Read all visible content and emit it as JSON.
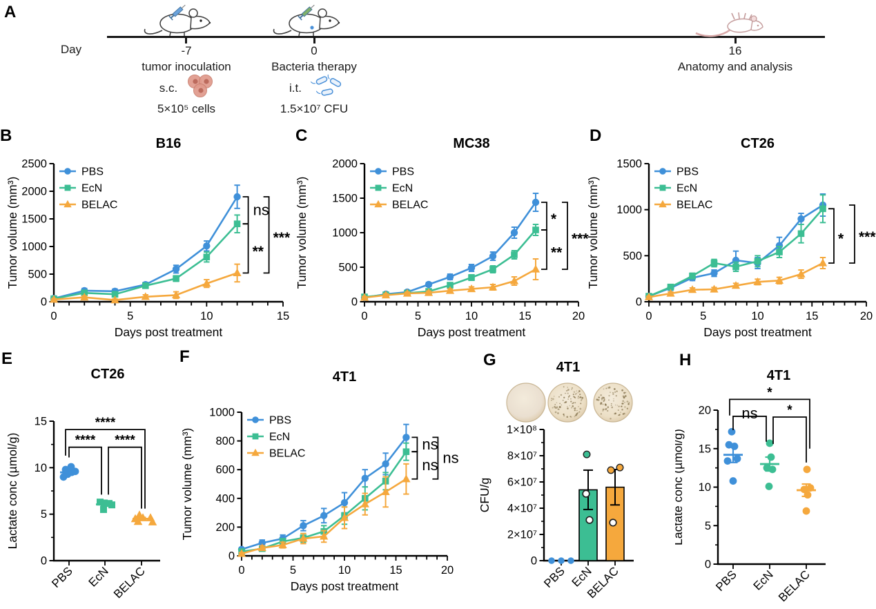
{
  "palette": {
    "pbs_blue": "#3f90d9",
    "ecn_green": "#3cbe93",
    "belac_orange": "#f5a83d",
    "axis_black": "#000000",
    "dish_fill_center": "#f3ebdb",
    "dish_fill_edge": "#dcc9a9",
    "dish_rim": "#c8b593",
    "dish_speck": "#82704a",
    "cells_pink": "#e09a8c",
    "cells_nucleus": "#bc6b5d",
    "bacteria_blue": "#4a90d8",
    "dead_mouse_pink": "#c49c9c",
    "mouse_line": "#3f3f3f",
    "syringe_blue": "#6aa3dd",
    "syringe_green": "#7fb069"
  },
  "group_names": [
    "PBS",
    "EcN",
    "BELAC"
  ],
  "timeline": {
    "panel_label": "A",
    "day_axis_label": "Day",
    "icons": {
      "inoculation_mouse": "mouse-syringe-icon",
      "therapy_mouse": "mouse-syringe-icon",
      "endpoint_mouse": "dead-mouse-icon",
      "sc_icon": "tumor-cells-icon",
      "it_icon": "bacteria-icon"
    },
    "events": [
      {
        "day": "-7",
        "title": "tumor inoculation",
        "route": "s.c.",
        "amount": "5×10⁵ cells"
      },
      {
        "day": "0",
        "title": "Bacteria therapy",
        "route": "i.t.",
        "amount": "1.5×10⁷ CFU"
      },
      {
        "day": "16",
        "title": "Anatomy and analysis",
        "route": "",
        "amount": ""
      }
    ]
  },
  "chart_data": [
    {
      "id": "B",
      "panel_label": "B",
      "type": "line",
      "title": "B16",
      "xlabel": "Days post treatment",
      "ylabel": "Tumor volume (mm³)",
      "x": [
        0,
        2,
        4,
        6,
        8,
        10,
        12
      ],
      "xlim": [
        0,
        15
      ],
      "xticks": [
        0,
        5,
        10,
        15
      ],
      "ylim": [
        0,
        2500
      ],
      "yticks": [
        0,
        500,
        1000,
        1500,
        2000,
        2500
      ],
      "legend_position": "top-left",
      "grid": false,
      "series": [
        {
          "name": "PBS",
          "color_key": "pbs_blue",
          "marker": "circle",
          "values": [
            60,
            200,
            190,
            310,
            590,
            1010,
            1900
          ],
          "sem": [
            20,
            40,
            40,
            40,
            70,
            90,
            210
          ]
        },
        {
          "name": "EcN",
          "color_key": "ecn_green",
          "marker": "square",
          "values": [
            55,
            160,
            135,
            290,
            420,
            810,
            1410
          ],
          "sem": [
            15,
            30,
            30,
            35,
            50,
            90,
            160
          ]
        },
        {
          "name": "BELAC",
          "color_key": "belac_orange",
          "marker": "triangle",
          "values": [
            40,
            80,
            30,
            90,
            120,
            330,
            520
          ],
          "sem": [
            15,
            25,
            20,
            35,
            60,
            70,
            160
          ]
        }
      ],
      "significance": [
        {
          "from": "PBS",
          "to": "EcN",
          "label": "ns",
          "tier": 0
        },
        {
          "from": "EcN",
          "to": "BELAC",
          "label": "**",
          "tier": 0
        },
        {
          "from": "PBS",
          "to": "BELAC",
          "label": "***",
          "tier": 1
        }
      ]
    },
    {
      "id": "C",
      "panel_label": "C",
      "type": "line",
      "title": "MC38",
      "xlabel": "Days post treatment",
      "ylabel": "Tumor volume (mm³)",
      "x": [
        0,
        2,
        4,
        6,
        8,
        10,
        12,
        14,
        16
      ],
      "xlim": [
        0,
        20
      ],
      "xticks": [
        0,
        5,
        10,
        15,
        20
      ],
      "ylim": [
        0,
        2000
      ],
      "yticks": [
        0,
        500,
        1000,
        1500,
        2000
      ],
      "legend_position": "top-left",
      "grid": false,
      "series": [
        {
          "name": "PBS",
          "color_key": "pbs_blue",
          "marker": "circle",
          "values": [
            60,
            110,
            140,
            250,
            360,
            490,
            660,
            1000,
            1440
          ],
          "sem": [
            15,
            20,
            25,
            30,
            40,
            50,
            60,
            80,
            130
          ]
        },
        {
          "name": "EcN",
          "color_key": "ecn_green",
          "marker": "square",
          "values": [
            70,
            100,
            125,
            150,
            240,
            350,
            470,
            680,
            1040
          ],
          "sem": [
            15,
            20,
            20,
            25,
            30,
            40,
            50,
            60,
            80
          ]
        },
        {
          "name": "BELAC",
          "color_key": "belac_orange",
          "marker": "triangle",
          "values": [
            60,
            95,
            120,
            130,
            160,
            185,
            210,
            300,
            470
          ],
          "sem": [
            15,
            20,
            20,
            25,
            25,
            30,
            40,
            60,
            150
          ]
        }
      ],
      "significance": [
        {
          "from": "PBS",
          "to": "EcN",
          "label": "*",
          "tier": 0
        },
        {
          "from": "EcN",
          "to": "BELAC",
          "label": "**",
          "tier": 0
        },
        {
          "from": "PBS",
          "to": "BELAC",
          "label": "***",
          "tier": 1
        }
      ]
    },
    {
      "id": "D",
      "panel_label": "D",
      "type": "line",
      "title": "CT26",
      "xlabel": "Days post treatment",
      "ylabel": "Tumor volume (mm³)",
      "x": [
        0,
        2,
        4,
        6,
        8,
        10,
        12,
        14,
        16
      ],
      "xlim": [
        0,
        20
      ],
      "xticks": [
        0,
        5,
        10,
        15,
        20
      ],
      "ylim": [
        0,
        1500
      ],
      "yticks": [
        0,
        500,
        1000,
        1500
      ],
      "legend_position": "top-left",
      "grid": false,
      "series": [
        {
          "name": "PBS",
          "color_key": "pbs_blue",
          "marker": "circle",
          "values": [
            60,
            150,
            260,
            310,
            450,
            420,
            610,
            900,
            1050
          ],
          "sem": [
            15,
            25,
            30,
            35,
            100,
            60,
            90,
            60,
            120
          ]
        },
        {
          "name": "EcN",
          "color_key": "ecn_green",
          "marker": "square",
          "values": [
            60,
            160,
            280,
            420,
            380,
            440,
            540,
            740,
            1010
          ],
          "sem": [
            15,
            25,
            30,
            40,
            50,
            60,
            60,
            100,
            150
          ]
        },
        {
          "name": "BELAC",
          "color_key": "belac_orange",
          "marker": "triangle",
          "values": [
            50,
            90,
            130,
            135,
            175,
            215,
            230,
            300,
            420
          ],
          "sem": [
            10,
            15,
            20,
            20,
            25,
            30,
            35,
            45,
            60
          ]
        }
      ],
      "significance": [
        {
          "from": "EcN",
          "to": "BELAC",
          "label": "*",
          "tier": 0
        },
        {
          "from": "PBS",
          "to": "BELAC",
          "label": "***",
          "tier": 1
        }
      ]
    },
    {
      "id": "E",
      "panel_label": "E",
      "type": "scatter",
      "title": "CT26",
      "ylabel": "Lactate conc (µmol/g)",
      "ylim": [
        0,
        15
      ],
      "yticks": [
        0,
        5,
        10,
        15
      ],
      "categories": [
        "PBS",
        "EcN",
        "BELAC"
      ],
      "groups": [
        {
          "name": "PBS",
          "color_key": "pbs_blue",
          "marker": "circle",
          "mean": 9.5,
          "sem": 0.18,
          "points": [
            [
              9.0,
              -8
            ],
            [
              9.3,
              -2
            ],
            [
              9.5,
              4
            ],
            [
              9.6,
              9
            ],
            [
              9.8,
              -5
            ],
            [
              10.1,
              3
            ]
          ]
        },
        {
          "name": "EcN",
          "color_key": "ecn_green",
          "marker": "square",
          "mean": 6.05,
          "sem": 0.15,
          "points": [
            [
              6.3,
              -7
            ],
            [
              6.2,
              -1
            ],
            [
              6.15,
              6
            ],
            [
              6.0,
              10
            ],
            [
              5.5,
              -2
            ]
          ]
        },
        {
          "name": "BELAC",
          "color_key": "belac_orange",
          "marker": "triangle",
          "mean": 4.5,
          "sem": 0.15,
          "points": [
            [
              4.9,
              -3
            ],
            [
              4.6,
              2
            ],
            [
              4.5,
              -9
            ],
            [
              4.2,
              -5
            ],
            [
              4.6,
              13
            ],
            [
              4.15,
              16
            ]
          ]
        }
      ],
      "significance": [
        {
          "a": 0,
          "b": 1,
          "label": "****",
          "bar": 12.2,
          "ya": 11.1,
          "yb": 7.1
        },
        {
          "a": 1,
          "b": 2,
          "label": "****",
          "bar": 12.2,
          "ya": 7.1,
          "yb": 5.6
        },
        {
          "a": 0,
          "b": 2,
          "label": "****",
          "bar": 14.1,
          "ya": 11.3,
          "yb": 5.6
        }
      ]
    },
    {
      "id": "F",
      "panel_label": "F",
      "type": "line",
      "title": "4T1",
      "xlabel": "Days post treatment",
      "ylabel": "Tumor volume (mm³)",
      "x": [
        0,
        2,
        4,
        6,
        8,
        10,
        12,
        14,
        16
      ],
      "xlim": [
        0,
        20
      ],
      "xticks": [
        0,
        5,
        10,
        15,
        20
      ],
      "ylim": [
        0,
        1000
      ],
      "yticks": [
        0,
        200,
        400,
        600,
        800,
        1000
      ],
      "legend_position": "top-left",
      "grid": false,
      "series": [
        {
          "name": "PBS",
          "color_key": "pbs_blue",
          "marker": "circle",
          "values": [
            45,
            90,
            120,
            210,
            280,
            370,
            540,
            640,
            825
          ],
          "sem": [
            10,
            20,
            25,
            35,
            50,
            70,
            60,
            75,
            90
          ]
        },
        {
          "name": "EcN",
          "color_key": "ecn_green",
          "marker": "square",
          "values": [
            30,
            50,
            100,
            125,
            170,
            280,
            400,
            520,
            725
          ],
          "sem": [
            10,
            15,
            20,
            30,
            40,
            60,
            80,
            60,
            60
          ]
        },
        {
          "name": "BELAC",
          "color_key": "belac_orange",
          "marker": "triangle",
          "values": [
            15,
            55,
            75,
            120,
            135,
            265,
            360,
            445,
            535
          ],
          "sem": [
            8,
            15,
            20,
            35,
            40,
            75,
            75,
            105,
            105
          ]
        }
      ],
      "significance": [
        {
          "from": "PBS",
          "to": "EcN",
          "label": "ns",
          "tier": 0
        },
        {
          "from": "EcN",
          "to": "BELAC",
          "label": "ns",
          "tier": 0
        },
        {
          "from": "PBS",
          "to": "BELAC",
          "label": "ns",
          "tier": 1
        }
      ]
    },
    {
      "id": "G",
      "panel_label": "G",
      "type": "bar",
      "title": "4T1",
      "ylabel": "CFU/g",
      "ylim": [
        0,
        100000000
      ],
      "yticks": [
        {
          "v": 0,
          "label": "0"
        },
        {
          "v": 20000000,
          "label": "2×10⁷"
        },
        {
          "v": 40000000,
          "label": "4×10⁷"
        },
        {
          "v": 60000000,
          "label": "6×10⁷"
        },
        {
          "v": 80000000,
          "label": "8×10⁷"
        },
        {
          "v": 100000000,
          "label": "1×10⁸"
        }
      ],
      "categories": [
        "PBS",
        "EcN",
        "BELAC"
      ],
      "bars": [
        {
          "name": "PBS",
          "color_key": "pbs_blue",
          "value": 0,
          "sem": 0,
          "points": [
            [
              0,
              -14,
              "solid"
            ],
            [
              0,
              0,
              "solid"
            ],
            [
              0,
              14,
              "solid"
            ]
          ]
        },
        {
          "name": "EcN",
          "color_key": "ecn_green",
          "value": 54000000,
          "sem": 15000000,
          "points": [
            [
              31000000,
              2,
              "open"
            ],
            [
              51000000,
              -3,
              "open"
            ],
            [
              81000000,
              -2,
              "solid"
            ]
          ]
        },
        {
          "name": "BELAC",
          "color_key": "belac_orange",
          "value": 56000000,
          "sem": 13500000,
          "points": [
            [
              29000000,
              -3,
              "open"
            ],
            [
              69000000,
              -6,
              "solid"
            ],
            [
              71000000,
              7,
              "solid"
            ]
          ]
        }
      ],
      "petri_dishes": [
        {
          "group": "PBS",
          "speckles": 0
        },
        {
          "group": "EcN",
          "speckles": 90
        },
        {
          "group": "BELAC",
          "speckles": 75
        }
      ]
    },
    {
      "id": "H",
      "panel_label": "H",
      "type": "scatter",
      "title": "4T1",
      "ylabel": "Lactate conc (µmol/g)",
      "ylim": [
        0,
        20
      ],
      "yticks": [
        0,
        5,
        10,
        15,
        20
      ],
      "categories": [
        "PBS",
        "EcN",
        "BELAC"
      ],
      "groups": [
        {
          "name": "PBS",
          "color_key": "pbs_blue",
          "marker": "circle",
          "mean": 14.2,
          "sem": 1.0,
          "points": [
            [
              17.2,
              -2
            ],
            [
              15.5,
              -6
            ],
            [
              15.3,
              2
            ],
            [
              13.7,
              6
            ],
            [
              13.4,
              -8
            ],
            [
              10.8,
              0
            ]
          ]
        },
        {
          "name": "EcN",
          "color_key": "ecn_green",
          "marker": "circle",
          "mean": 13.0,
          "sem": 0.9,
          "points": [
            [
              15.7,
              0
            ],
            [
              13.9,
              2
            ],
            [
              12.5,
              -4
            ],
            [
              12.3,
              4
            ],
            [
              10.1,
              -1
            ]
          ]
        },
        {
          "name": "BELAC",
          "color_key": "belac_orange",
          "marker": "circle",
          "mean": 9.6,
          "sem": 0.8,
          "points": [
            [
              12.3,
              1
            ],
            [
              9.9,
              6
            ],
            [
              9.7,
              -3
            ],
            [
              9.0,
              2
            ],
            [
              6.9,
              0
            ]
          ]
        }
      ],
      "significance": [
        {
          "a": 0,
          "b": 1,
          "label": "ns",
          "bar": 19.2,
          "ya": 17.4,
          "yb": 15.9
        },
        {
          "a": 1,
          "b": 2,
          "label": "*",
          "bar": 19.1,
          "ya": 15.6,
          "yb": 13.2
        },
        {
          "a": 0,
          "b": 2,
          "label": "*",
          "bar": 21.4,
          "ya": 19.3,
          "yb": 15.0
        }
      ]
    }
  ]
}
